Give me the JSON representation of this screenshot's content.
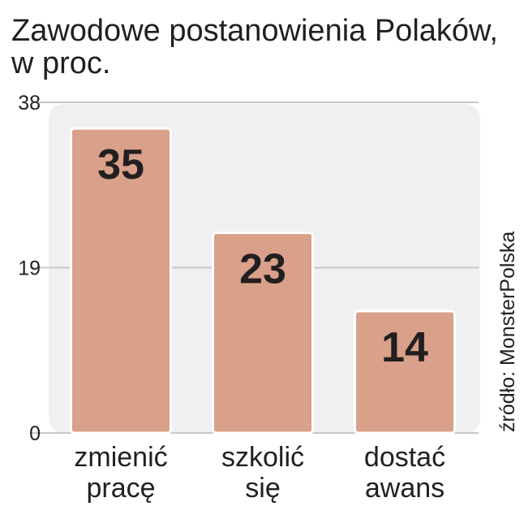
{
  "title": "Zawodowe postanowienia Polaków,",
  "subtitle": "w proc.",
  "source": "źródło: MonsterPolska",
  "colors": {
    "bar_fill": "#d9a08a",
    "bar_stroke": "#ffffff",
    "plot_bg": "#f0eff1",
    "gridline": "#c8c8c8",
    "text": "#231f20"
  },
  "chart_data": {
    "type": "bar",
    "categories": [
      [
        "zmienić",
        "pracę"
      ],
      [
        "szkolić",
        "się"
      ],
      [
        "dostać",
        "awans"
      ]
    ],
    "values": [
      35,
      23,
      14
    ],
    "data_labels": [
      "35",
      "23",
      "14"
    ],
    "ylim": [
      0,
      38
    ],
    "yticks": [
      0,
      19,
      38
    ],
    "grid": true,
    "legend": "none"
  }
}
